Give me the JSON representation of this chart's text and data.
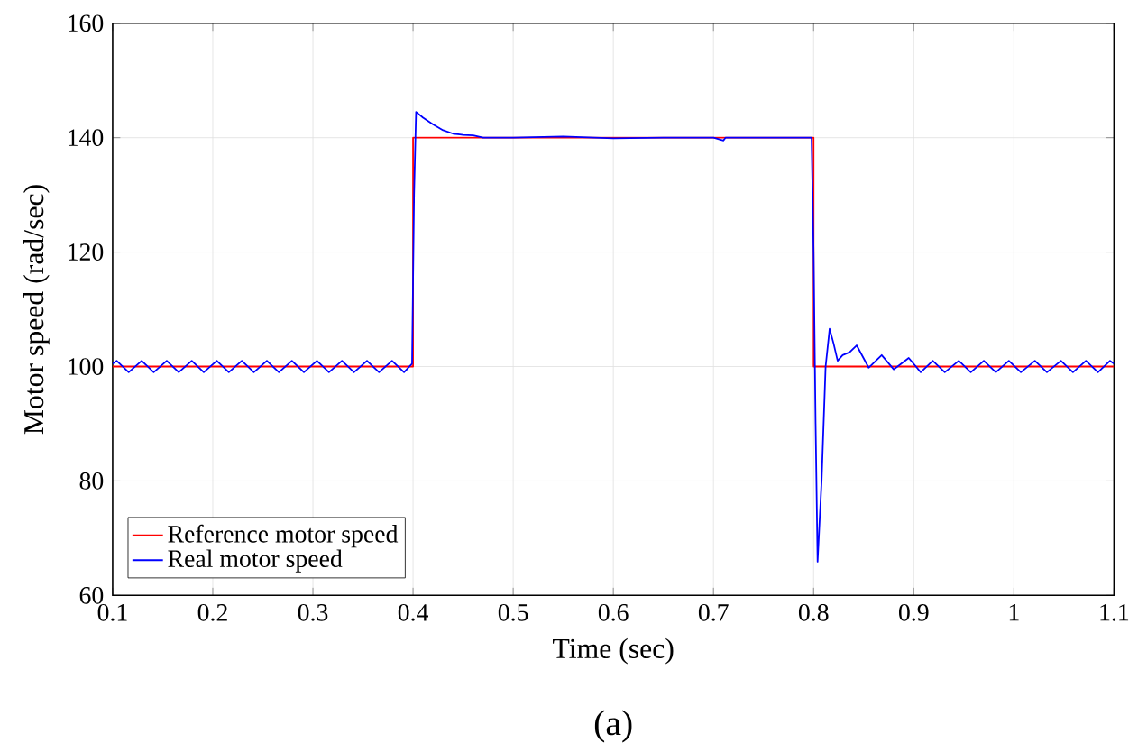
{
  "chart_data": {
    "type": "line",
    "xlabel": "Time (sec)",
    "ylabel": "Motor speed (rad/sec)",
    "annotations": [
      "(a)"
    ],
    "xlim": [
      0.1,
      1.1
    ],
    "ylim": [
      60,
      160
    ],
    "xticks": [
      0.1,
      0.2,
      0.3,
      0.4,
      0.5,
      0.6,
      0.7,
      0.8,
      0.9,
      1,
      1.1
    ],
    "yticks": [
      60,
      80,
      100,
      120,
      140,
      160
    ],
    "grid": true,
    "legend": "bottom left",
    "marker": "none",
    "line_style": "solid",
    "series": [
      {
        "name": "Reference motor speed",
        "color": "#ff0000",
        "x": [
          0.1,
          0.4,
          0.4,
          0.8,
          0.8,
          1.1
        ],
        "values": [
          100,
          100,
          140,
          140,
          100,
          100
        ]
      },
      {
        "name": "Real motor speed",
        "color": "#0000ff",
        "x": [
          0.1,
          0.104,
          0.116,
          0.129,
          0.141,
          0.154,
          0.166,
          0.179,
          0.191,
          0.204,
          0.216,
          0.229,
          0.241,
          0.254,
          0.266,
          0.279,
          0.291,
          0.304,
          0.316,
          0.329,
          0.341,
          0.354,
          0.366,
          0.379,
          0.391,
          0.399,
          0.401,
          0.403,
          0.41,
          0.42,
          0.43,
          0.44,
          0.45,
          0.46,
          0.47,
          0.5,
          0.55,
          0.6,
          0.65,
          0.7,
          0.71,
          0.712,
          0.75,
          0.798,
          0.8,
          0.802,
          0.804,
          0.808,
          0.812,
          0.816,
          0.82,
          0.824,
          0.829,
          0.836,
          0.843,
          0.855,
          0.868,
          0.88,
          0.895,
          0.907,
          0.919,
          0.931,
          0.945,
          0.957,
          0.97,
          0.982,
          0.995,
          1.007,
          1.021,
          1.033,
          1.047,
          1.059,
          1.072,
          1.084,
          1.096,
          1.1
        ],
        "values": [
          100.5,
          101,
          99,
          101,
          99,
          101,
          99,
          101,
          99,
          101,
          99,
          101,
          99,
          101,
          99,
          101,
          99,
          101,
          99,
          101,
          99,
          101,
          99,
          101,
          99,
          100.5,
          130,
          144.5,
          143.5,
          142.3,
          141.3,
          140.7,
          140.5,
          140.4,
          140,
          140,
          140.2,
          139.9,
          140,
          140,
          139.5,
          140,
          140,
          140,
          120,
          90,
          65.9,
          80,
          100,
          106.6,
          104,
          101,
          102,
          102.5,
          103.7,
          99.8,
          102,
          99.5,
          101.5,
          99,
          101,
          99,
          101,
          99,
          101,
          99,
          101,
          99,
          101,
          99,
          101,
          99,
          101,
          99,
          101,
          100.5
        ]
      }
    ]
  }
}
